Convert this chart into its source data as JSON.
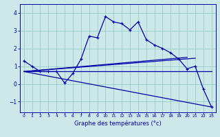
{
  "xlabel": "Graphe des températures (°c)",
  "background_color": "#cce8e8",
  "line_color": "#0000aa",
  "grid_color": "#99cccc",
  "xlim": [
    -0.5,
    23.5
  ],
  "ylim": [
    -1.6,
    4.5
  ],
  "yticks": [
    -1,
    0,
    1,
    2,
    3,
    4
  ],
  "xticks": [
    0,
    1,
    2,
    3,
    4,
    5,
    6,
    7,
    8,
    9,
    10,
    11,
    12,
    13,
    14,
    15,
    16,
    17,
    18,
    19,
    20,
    21,
    22,
    23
  ],
  "line1_x": [
    0,
    1,
    2,
    3,
    4,
    5,
    6,
    7,
    8,
    9,
    10,
    11,
    12,
    13,
    14,
    15,
    16,
    17,
    18,
    19,
    20,
    21,
    22,
    23
  ],
  "line1_y": [
    1.3,
    1.0,
    0.7,
    0.7,
    0.7,
    0.05,
    0.6,
    1.4,
    2.7,
    2.6,
    3.8,
    3.5,
    3.4,
    3.05,
    3.5,
    2.5,
    2.2,
    2.0,
    1.75,
    1.4,
    0.85,
    1.0,
    -0.3,
    -1.3
  ],
  "line2_x": [
    0,
    23
  ],
  "line2_y": [
    0.7,
    0.7
  ],
  "line3_x": [
    0,
    23
  ],
  "line3_y": [
    0.7,
    -1.3
  ],
  "line4_x": [
    0,
    21
  ],
  "line4_y": [
    0.7,
    1.45
  ],
  "line5_x": [
    0,
    20
  ],
  "line5_y": [
    0.7,
    1.5
  ]
}
